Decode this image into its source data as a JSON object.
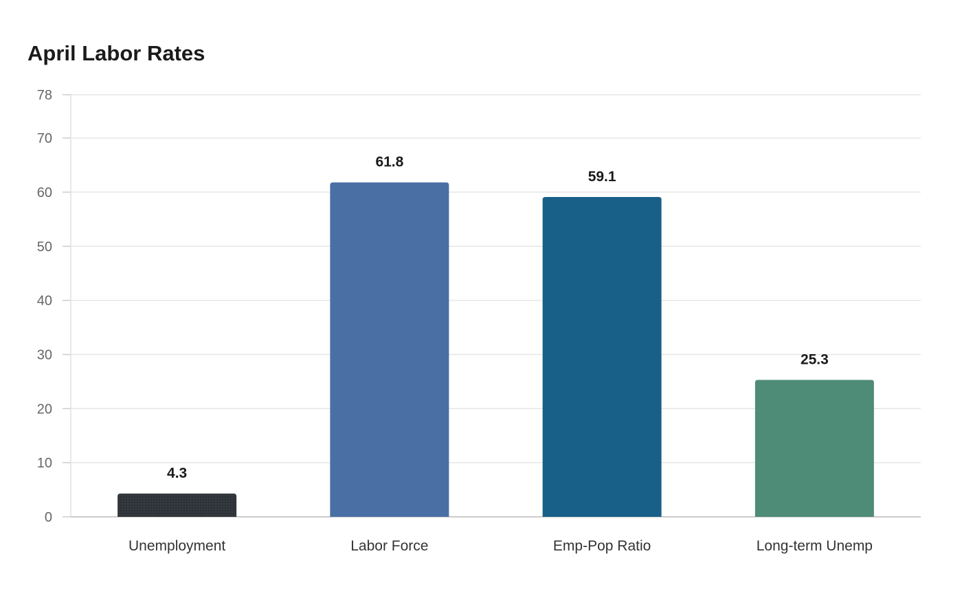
{
  "chart_data": {
    "type": "bar",
    "title": "April Labor Rates",
    "categories": [
      "Unemployment",
      "Labor Force",
      "Emp-Pop Ratio",
      "Long-term Unemp"
    ],
    "values": [
      4.3,
      61.8,
      59.1,
      25.3
    ],
    "value_labels": [
      "4.3",
      "61.8",
      "59.1",
      "25.3"
    ],
    "colors": [
      "#2e3338",
      "#4a6fa5",
      "#186088",
      "#4e8c78"
    ],
    "yticks": [
      0,
      10,
      20,
      30,
      40,
      50,
      60,
      70,
      78
    ],
    "ylim": [
      0,
      78
    ],
    "xlabel": "",
    "ylabel": "",
    "grid": true,
    "legend": false
  }
}
